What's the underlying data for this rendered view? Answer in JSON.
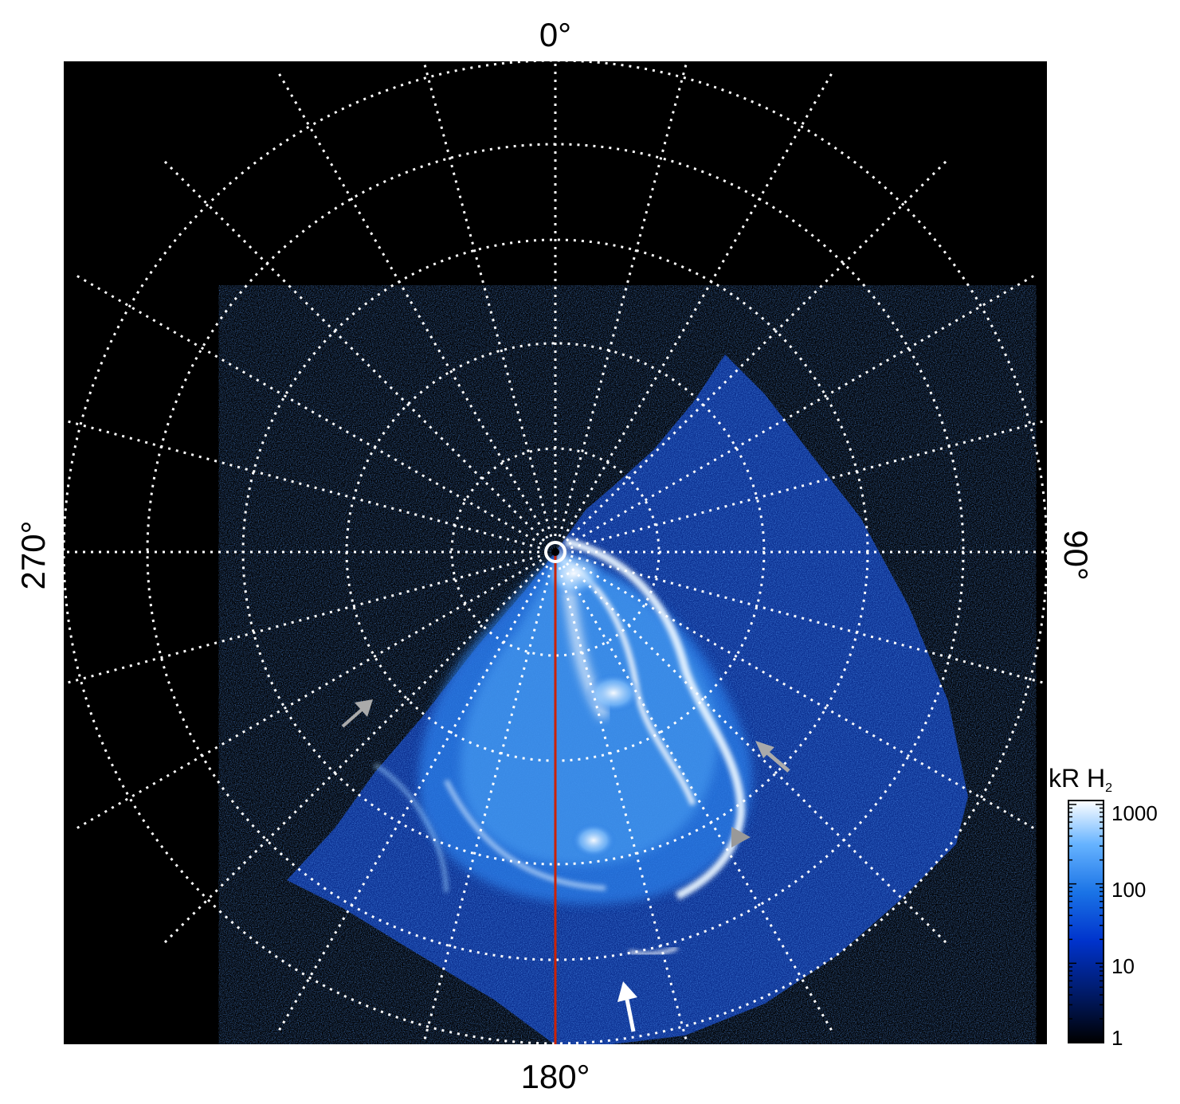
{
  "axis_labels": {
    "top": "0°",
    "right": "90°",
    "bottom": "180°",
    "left": "270°"
  },
  "colorbar": {
    "title_main": "kR H",
    "title_sub": "2",
    "scale": "log",
    "ticks": [
      "1000",
      "100",
      "10",
      "1"
    ],
    "colors": [
      "#000000",
      "#001a66",
      "#0033cc",
      "#1a73e6",
      "#66b3ff",
      "#ffffff"
    ]
  },
  "map": {
    "background": "#000000",
    "grid_color": "#ffffff",
    "meridian_color": "#cc2200",
    "arrow_white": "#ffffff",
    "arrow_gray": "#aaaaaa"
  }
}
